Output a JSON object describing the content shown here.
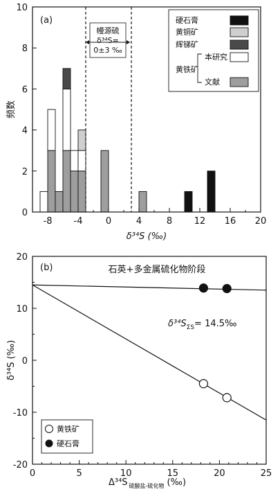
{
  "chart_data": [
    {
      "type": "bar",
      "subtype": "stacked-histogram",
      "panel_label": "(a)",
      "xlabel": "δ³⁴S (‰)",
      "ylabel": "频数",
      "xlim": [
        -10,
        20
      ],
      "ylim": [
        0,
        10
      ],
      "x_ticks": [
        -8,
        -4,
        0,
        4,
        8,
        12,
        16,
        20
      ],
      "y_ticks": [
        0,
        2,
        4,
        6,
        8,
        10
      ],
      "bin_width": 1,
      "bins_start": [
        -9,
        -8,
        -7,
        -6,
        -5,
        -4,
        -3,
        -1,
        4,
        10,
        13
      ],
      "series": [
        {
          "name": "文献",
          "parent": "黄铁矿",
          "color": "#9e9e9e",
          "values": [
            0,
            3,
            1,
            3,
            2,
            2,
            0,
            3,
            1,
            0,
            0
          ]
        },
        {
          "name": "本研究",
          "parent": "黄铁矿",
          "color": "#ffffff",
          "values": [
            1,
            2,
            0,
            3,
            1,
            1,
            0,
            0,
            0,
            0,
            0
          ]
        },
        {
          "name": "辉锑矿",
          "color": "#4a4a4a",
          "values": [
            0,
            0,
            0,
            1,
            0,
            0,
            0,
            0,
            0,
            0,
            0
          ]
        },
        {
          "name": "黄铜矿",
          "color": "#cfcfcf",
          "values": [
            0,
            0,
            0,
            0,
            0,
            1,
            0,
            0,
            0,
            0,
            0
          ]
        },
        {
          "name": "硬石膏",
          "color": "#111111",
          "values": [
            0,
            0,
            0,
            0,
            0,
            0,
            0,
            0,
            0,
            1,
            2
          ]
        }
      ],
      "legend": {
        "placement": "top-right",
        "items": [
          "硬石膏",
          "黄铜矿",
          "辉锑矿"
        ],
        "group_label": "黄铁矿",
        "group_items": [
          "本研究",
          "文献"
        ]
      },
      "reference_lines": [
        -3,
        3
      ],
      "annotation": {
        "line1": "幔源硫",
        "line2": "δ³⁴S=",
        "line3": "0±3 ‰"
      },
      "grid": false
    },
    {
      "type": "scatter",
      "panel_label": "(b)",
      "title": "石英+多金属硫化物阶段",
      "xlabel_main": "Δ³⁴S",
      "xlabel_sub": "硫酸盐-硫化物",
      "xlabel_unit": "(‰)",
      "ylabel": "δ³⁴S (‰)",
      "xlim": [
        0,
        25
      ],
      "ylim": [
        -20,
        20
      ],
      "x_ticks": [
        0,
        5,
        10,
        15,
        20,
        25
      ],
      "y_ticks": [
        -20,
        -10,
        0,
        10,
        20
      ],
      "series": [
        {
          "name": "黄铁矿",
          "marker": "open-circle",
          "points": [
            [
              18.3,
              -4.5
            ],
            [
              20.8,
              -7.2
            ]
          ]
        },
        {
          "name": "硬石膏",
          "marker": "filled-circle",
          "points": [
            [
              18.3,
              13.9
            ],
            [
              20.8,
              13.8
            ]
          ]
        }
      ],
      "lines": [
        {
          "x": [
            0,
            25
          ],
          "y": [
            14.5,
            13.5
          ]
        },
        {
          "x": [
            0,
            25
          ],
          "y": [
            14.5,
            -11.5
          ]
        }
      ],
      "annotation": {
        "main": "δ³⁴S",
        "sub": "ΣS",
        "rest": "= 14.5‰"
      },
      "legend": {
        "placement": "bottom-left",
        "items": [
          "黄铁矿",
          "硬石膏"
        ]
      },
      "grid": false
    }
  ]
}
